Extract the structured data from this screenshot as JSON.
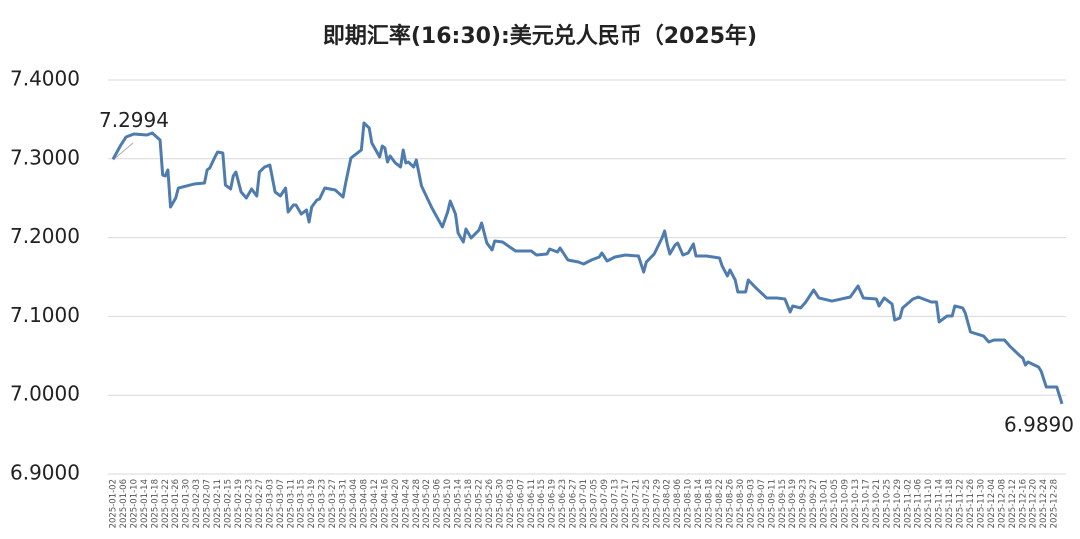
{
  "chart_data": {
    "type": "line",
    "title": "即期汇率(16:30):美元兑人民币（2025年)",
    "color": "#4f7cae",
    "grid": true,
    "ylim": [
      6.9,
      7.4
    ],
    "yticks": [
      {
        "value": 6.9,
        "label": "6.9000"
      },
      {
        "value": 7.0,
        "label": "7.0000"
      },
      {
        "value": 7.1,
        "label": "7.1000"
      },
      {
        "value": 7.2,
        "label": "7.2000"
      },
      {
        "value": 7.3,
        "label": "7.3000"
      },
      {
        "value": 7.4,
        "label": "7.4000"
      }
    ],
    "xlim": [
      "2025-01-02",
      "2025-12-31"
    ],
    "xticks": [
      "2025-01-02",
      "2025-01-06",
      "2025-01-10",
      "2025-01-14",
      "2025-01-18",
      "2025-01-22",
      "2025-01-26",
      "2025-01-30",
      "2025-02-03",
      "2025-02-07",
      "2025-02-11",
      "2025-02-15",
      "2025-02-19",
      "2025-02-23",
      "2025-02-27",
      "2025-03-03",
      "2025-03-07",
      "2025-03-11",
      "2025-03-15",
      "2025-03-19",
      "2025-03-23",
      "2025-03-27",
      "2025-03-31",
      "2025-04-04",
      "2025-04-08",
      "2025-04-12",
      "2025-04-16",
      "2025-04-20",
      "2025-04-24",
      "2025-04-28",
      "2025-05-02",
      "2025-05-06",
      "2025-05-10",
      "2025-05-14",
      "2025-05-18",
      "2025-05-22",
      "2025-05-26",
      "2025-05-30",
      "2025-06-03",
      "2025-06-07",
      "2025-06-11",
      "2025-06-15",
      "2025-06-19",
      "2025-06-23",
      "2025-06-27",
      "2025-07-01",
      "2025-07-05",
      "2025-07-09",
      "2025-07-13",
      "2025-07-17",
      "2025-07-21",
      "2025-07-25",
      "2025-07-29",
      "2025-08-02",
      "2025-08-06",
      "2025-08-10",
      "2025-08-14",
      "2025-08-18",
      "2025-08-22",
      "2025-08-26",
      "2025-08-30",
      "2025-09-03",
      "2025-09-07",
      "2025-09-11",
      "2025-09-15",
      "2025-09-19",
      "2025-09-23",
      "2025-09-27",
      "2025-10-01",
      "2025-10-05",
      "2025-10-09",
      "2025-10-13",
      "2025-10-17",
      "2025-10-21",
      "2025-10-25",
      "2025-10-29",
      "2025-11-02",
      "2025-11-06",
      "2025-11-10",
      "2025-11-14",
      "2025-11-18",
      "2025-11-22",
      "2025-11-26",
      "2025-11-30",
      "2025-12-04",
      "2025-12-08",
      "2025-12-12",
      "2025-12-16",
      "2025-12-20",
      "2025-12-24",
      "2025-12-28"
    ],
    "x": [
      "2025-01-02",
      "2025-01-05",
      "2025-01-07",
      "2025-01-10",
      "2025-01-15",
      "2025-01-17",
      "2025-01-20",
      "2025-01-21",
      "2025-01-22",
      "2025-01-23",
      "2025-01-24",
      "2025-01-26",
      "2025-01-27",
      "2025-02-02",
      "2025-02-06",
      "2025-02-07",
      "2025-02-08",
      "2025-02-10",
      "2025-02-11",
      "2025-02-13",
      "2025-02-14",
      "2025-02-16",
      "2025-02-17",
      "2025-02-18",
      "2025-02-20",
      "2025-02-22",
      "2025-02-24",
      "2025-02-26",
      "2025-02-27",
      "2025-03-01",
      "2025-03-03",
      "2025-03-05",
      "2025-03-07",
      "2025-03-09",
      "2025-03-10",
      "2025-03-12",
      "2025-03-13",
      "2025-03-15",
      "2025-03-17",
      "2025-03-18",
      "2025-03-19",
      "2025-03-21",
      "2025-03-22",
      "2025-03-24",
      "2025-03-28",
      "2025-03-31",
      "2025-04-01",
      "2025-04-03",
      "2025-04-07",
      "2025-04-08",
      "2025-04-10",
      "2025-04-11",
      "2025-04-14",
      "2025-04-15",
      "2025-04-16",
      "2025-04-17",
      "2025-04-18",
      "2025-04-20",
      "2025-04-22",
      "2025-04-23",
      "2025-04-24",
      "2025-04-25",
      "2025-04-27",
      "2025-04-28",
      "2025-04-30",
      "2025-05-04",
      "2025-05-08",
      "2025-05-10",
      "2025-05-11",
      "2025-05-13",
      "2025-05-14",
      "2025-05-16",
      "2025-05-17",
      "2025-05-19",
      "2025-05-22",
      "2025-05-23",
      "2025-05-25",
      "2025-05-27",
      "2025-05-28",
      "2025-05-31",
      "2025-06-05",
      "2025-06-11",
      "2025-06-13",
      "2025-06-17",
      "2025-06-18",
      "2025-06-21",
      "2025-06-22",
      "2025-06-25",
      "2025-06-29",
      "2025-07-01",
      "2025-07-04",
      "2025-07-07",
      "2025-07-08",
      "2025-07-10",
      "2025-07-13",
      "2025-07-17",
      "2025-07-22",
      "2025-07-24",
      "2025-07-25",
      "2025-07-28",
      "2025-07-31",
      "2025-08-01",
      "2025-08-02",
      "2025-08-03",
      "2025-08-05",
      "2025-08-06",
      "2025-08-08",
      "2025-08-10",
      "2025-08-12",
      "2025-08-13",
      "2025-08-17",
      "2025-08-22",
      "2025-08-23",
      "2025-08-25",
      "2025-08-26",
      "2025-08-28",
      "2025-08-29",
      "2025-09-01",
      "2025-09-02",
      "2025-09-05",
      "2025-09-09",
      "2025-09-13",
      "2025-09-16",
      "2025-09-18",
      "2025-09-19",
      "2025-09-22",
      "2025-09-24",
      "2025-09-27",
      "2025-09-29",
      "2025-10-04",
      "2025-10-11",
      "2025-10-14",
      "2025-10-16",
      "2025-10-21",
      "2025-10-22",
      "2025-10-24",
      "2025-10-27",
      "2025-10-28",
      "2025-10-30",
      "2025-10-31",
      "2025-11-04",
      "2025-11-06",
      "2025-11-11",
      "2025-11-13",
      "2025-11-14",
      "2025-11-17",
      "2025-11-19",
      "2025-11-20",
      "2025-11-23",
      "2025-11-24",
      "2025-11-26",
      "2025-12-01",
      "2025-12-03",
      "2025-12-05",
      "2025-12-09",
      "2025-12-11",
      "2025-12-15",
      "2025-12-16",
      "2025-12-17",
      "2025-12-18",
      "2025-12-22",
      "2025-12-23",
      "2025-12-25",
      "2025-12-29",
      "2025-12-31"
    ],
    "values": [
      7.2994,
      7.3175,
      7.3277,
      7.3315,
      7.3302,
      7.3327,
      7.3239,
      7.2794,
      7.2782,
      7.2858,
      7.2388,
      7.2503,
      7.2629,
      7.268,
      7.2693,
      7.2858,
      7.2883,
      7.3023,
      7.3086,
      7.3074,
      7.2667,
      7.2617,
      7.2782,
      7.2832,
      7.2579,
      7.2503,
      7.2617,
      7.2528,
      7.2832,
      7.2896,
      7.2921,
      7.2579,
      7.2528,
      7.2629,
      7.2325,
      7.2414,
      7.2414,
      7.2299,
      7.235,
      7.2198,
      7.2388,
      7.2477,
      7.249,
      7.2629,
      7.2604,
      7.2515,
      7.2693,
      7.301,
      7.3112,
      7.3454,
      7.3391,
      7.3201,
      7.3023,
      7.3162,
      7.3137,
      7.2959,
      7.3036,
      7.2947,
      7.2896,
      7.3112,
      7.2947,
      7.2959,
      7.2896,
      7.2985,
      7.2655,
      7.2376,
      7.2135,
      7.2325,
      7.2464,
      7.2299,
      7.2058,
      7.1944,
      7.2109,
      7.1995,
      7.2096,
      7.2185,
      7.1931,
      7.1843,
      7.1957,
      7.1944,
      7.183,
      7.183,
      7.1779,
      7.1792,
      7.1855,
      7.1817,
      7.1868,
      7.1716,
      7.169,
      7.1665,
      7.1716,
      7.1754,
      7.1805,
      7.1703,
      7.1754,
      7.1779,
      7.1766,
      7.1563,
      7.169,
      7.1792,
      7.1995,
      7.2084,
      7.1919,
      7.1792,
      7.1906,
      7.1931,
      7.1779,
      7.1805,
      7.1919,
      7.1766,
      7.1766,
      7.1741,
      7.164,
      7.1513,
      7.1589,
      7.1462,
      7.131,
      7.131,
      7.1462,
      7.136,
      7.1234,
      7.1234,
      7.1221,
      7.1056,
      7.1132,
      7.1107,
      7.1183,
      7.1335,
      7.1234,
      7.1195,
      7.1246,
      7.1386,
      7.1234,
      7.1221,
      7.1132,
      7.1234,
      7.1157,
      7.0954,
      7.098,
      7.1107,
      7.1221,
      7.1246,
      7.1183,
      7.1183,
      7.0929,
      7.1005,
      7.1005,
      7.1132,
      7.1107,
      7.1043,
      7.0802,
      7.0751,
      7.0675,
      7.0701,
      7.0701,
      7.0624,
      7.0497,
      7.0472,
      7.0383,
      7.0421,
      7.0358,
      7.0307,
      7.0104,
      7.0104,
      6.989
    ],
    "value_labels": [
      "7.2994",
      null,
      null,
      null,
      null,
      null,
      null,
      null,
      null,
      null,
      null,
      null,
      null,
      null,
      null,
      null,
      null,
      null,
      null,
      null,
      null,
      null,
      null,
      null,
      null,
      null,
      null,
      null,
      null,
      null,
      null,
      null,
      null,
      null,
      null,
      null,
      null,
      null,
      null,
      null,
      null,
      null,
      null,
      null,
      null,
      null,
      null,
      null,
      null,
      null,
      null,
      null,
      null,
      null,
      null,
      null,
      null,
      null,
      null,
      null,
      null,
      null,
      null,
      null,
      null,
      null,
      null,
      null,
      null,
      null,
      null,
      null,
      null,
      null,
      null,
      null,
      null,
      null,
      null,
      null,
      null,
      null,
      null,
      null,
      null,
      null,
      null,
      null,
      null,
      null,
      null,
      null,
      null,
      null,
      null,
      null,
      null,
      null,
      null,
      null,
      null,
      null,
      null,
      null,
      null,
      null,
      null,
      null,
      null,
      null,
      null,
      null,
      null,
      null,
      null,
      null,
      null,
      null,
      null,
      null,
      null,
      null,
      null,
      null,
      null,
      null,
      null,
      null,
      null,
      null,
      null,
      null,
      null,
      null,
      null,
      null,
      null,
      null,
      null,
      null,
      null,
      null,
      null,
      null,
      null,
      null,
      null,
      null,
      null,
      null,
      null,
      null,
      null,
      null,
      null,
      null,
      null,
      null,
      null,
      null,
      null,
      null,
      null,
      null,
      "6.9890"
    ]
  }
}
